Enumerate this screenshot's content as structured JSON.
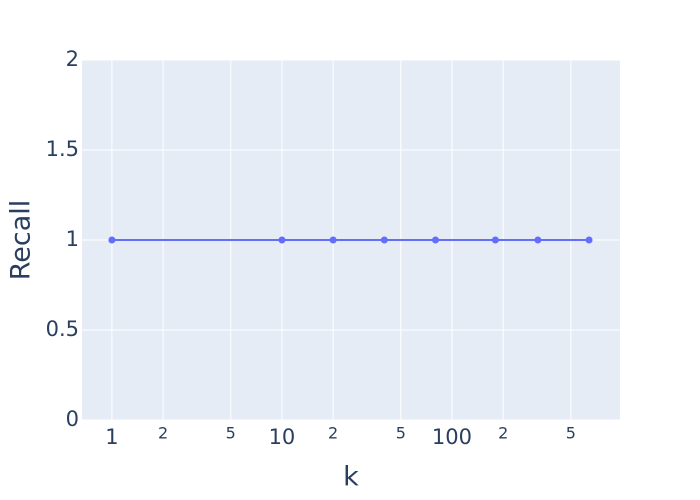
{
  "chart_data": {
    "type": "line",
    "x_label": "k",
    "y_label": "Recall",
    "x": [
      1,
      10,
      20,
      40,
      80,
      180,
      320,
      640
    ],
    "series": [
      {
        "name": "Recall",
        "color": "#636efa",
        "values": [
          1,
          1,
          1,
          1,
          1,
          1,
          1,
          1
        ]
      }
    ],
    "x_log": true,
    "xlim": [
      0.667,
      973
    ],
    "xticks": [
      1,
      2,
      5,
      10,
      {
        "value": 20,
        "label": "2"
      },
      {
        "value": 50,
        "label": "5"
      },
      100,
      {
        "value": 200,
        "label": "2"
      },
      {
        "value": 500,
        "label": "5"
      }
    ],
    "ylim": [
      0,
      2
    ],
    "yticks": [
      0,
      0.5,
      1,
      1.5,
      2
    ],
    "grid": true
  }
}
